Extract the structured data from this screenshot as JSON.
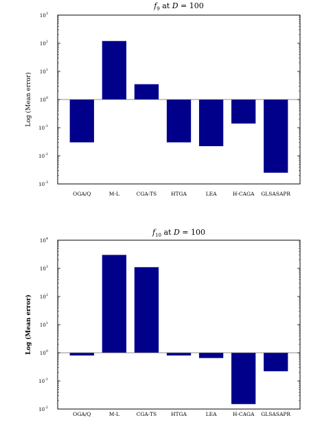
{
  "chart_data": [
    {
      "type": "bar",
      "title_func": "f",
      "title_sub": "9",
      "title_rest": " at ",
      "title_D": "D",
      "title_eq": " = 100",
      "ylabel": "Log (Mean error)",
      "yscale": "log",
      "baseline": 1,
      "ylim": [
        0.001,
        1000
      ],
      "y_tick_exponents": [
        "3",
        "2",
        "1",
        "0",
        "-1",
        "-2",
        "-3"
      ],
      "categories": [
        "OGA/Q",
        "M-L",
        "CGA-TS",
        "HTGA",
        "LEA",
        "H-CAGA",
        "GLSASAPR"
      ],
      "values": [
        0.03,
        120,
        3.5,
        0.03,
        0.022,
        0.14,
        0.0025
      ],
      "bar_color": "#00008b"
    },
    {
      "type": "bar",
      "title_func": "f",
      "title_sub": "10",
      "title_rest": " at ",
      "title_D": "D",
      "title_eq": " = 100",
      "ylabel": "Log (Mean error)",
      "yscale": "log",
      "baseline": 1,
      "ylim": [
        0.01,
        10000
      ],
      "y_tick_exponents": [
        "4",
        "3",
        "2",
        "1",
        "0",
        "-1",
        "-2"
      ],
      "categories": [
        "OGA/Q",
        "M-L",
        "CGA-TS",
        "HTGA",
        "LEA",
        "H-CAGA",
        "GLSASAPR"
      ],
      "values": [
        0.8,
        3000,
        1100,
        0.8,
        0.65,
        0.015,
        0.22
      ],
      "bar_color": "#00008b"
    }
  ]
}
